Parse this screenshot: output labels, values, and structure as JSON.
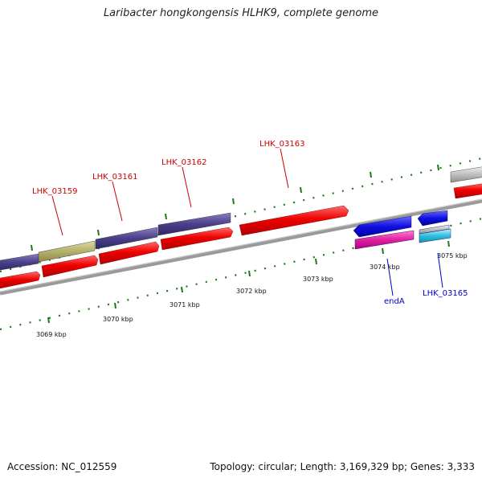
{
  "title": "Laribacter hongkongensis HLHK9, complete genome",
  "accession_text": "Accession: NC_012559",
  "summary_text": "Topology: circular; Length: 3,169,329 bp; Genes: 3,333",
  "ruler_labels": [
    "3069 kbp",
    "3070 kbp",
    "3071 kbp",
    "3072 kbp",
    "3073 kbp",
    "3074 kbp",
    "3075 kbp"
  ],
  "gene_labels": {
    "lhk_03159": "LHK_03159",
    "lhk_03161": "LHK_03161",
    "lhk_03162": "LHK_03162",
    "lhk_03163": "LHK_03163",
    "enda": "endA",
    "lhk_03165": "LHK_03165"
  },
  "colors": {
    "forward_gene": "#e00000",
    "feature_purple": "#4a3f8a",
    "feature_olive": "#b3b06a",
    "reverse_gene": "#1010d0",
    "feature_pink": "#e020a0",
    "feature_cyan": "#30c0e0",
    "feature_gray": "#c0c0c0",
    "backbone": "#7a7a7a",
    "tick": "#1a7a1a",
    "label_forward": "#cc0000",
    "label_reverse": "#0000cc"
  }
}
